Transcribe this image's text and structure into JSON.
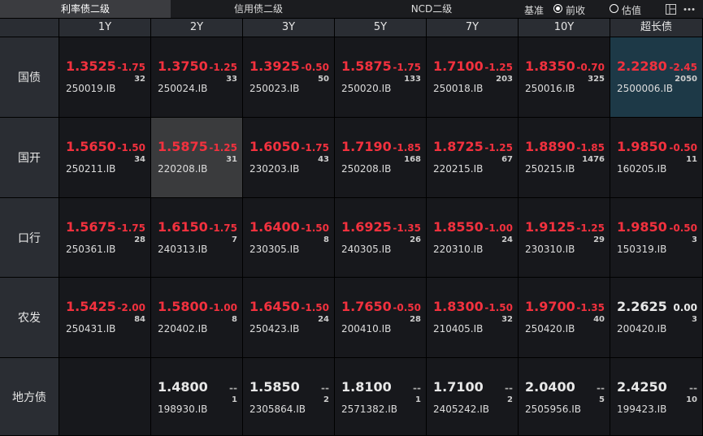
{
  "tabs": [
    "利率债二级",
    "信用债二级",
    "NCD二级"
  ],
  "basis": {
    "label": "基准",
    "options": [
      "前收",
      "估值"
    ]
  },
  "table": {
    "columns": [
      "1Y",
      "2Y",
      "3Y",
      "5Y",
      "7Y",
      "10Y",
      "超长债"
    ],
    "rows": [
      {
        "label": "国债",
        "cells": [
          {
            "price": "1.3525",
            "change": "-1.75",
            "count": "32",
            "code": "250019.IB"
          },
          {
            "price": "1.3750",
            "change": "-1.25",
            "count": "33",
            "code": "250024.IB"
          },
          {
            "price": "1.3925",
            "change": "-0.50",
            "count": "50",
            "code": "250023.IB"
          },
          {
            "price": "1.5875",
            "change": "-1.75",
            "count": "133",
            "code": "250020.IB"
          },
          {
            "price": "1.7100",
            "change": "-1.25",
            "count": "203",
            "code": "250018.IB"
          },
          {
            "price": "1.8350",
            "change": "-0.70",
            "count": "325",
            "code": "250016.IB"
          },
          {
            "price": "2.2280",
            "change": "-2.45",
            "count": "2050",
            "code": "2500006.IB"
          }
        ]
      },
      {
        "label": "国开",
        "cells": [
          {
            "price": "1.5650",
            "change": "-1.50",
            "count": "34",
            "code": "250211.IB"
          },
          {
            "price": "1.5875",
            "change": "-1.25",
            "count": "31",
            "code": "220208.IB"
          },
          {
            "price": "1.6050",
            "change": "-1.75",
            "count": "43",
            "code": "230203.IB"
          },
          {
            "price": "1.7190",
            "change": "-1.85",
            "count": "168",
            "code": "250208.IB"
          },
          {
            "price": "1.8725",
            "change": "-1.25",
            "count": "67",
            "code": "220215.IB"
          },
          {
            "price": "1.8890",
            "change": "-1.85",
            "count": "1476",
            "code": "250215.IB"
          },
          {
            "price": "1.9850",
            "change": "-0.50",
            "count": "11",
            "code": "160205.IB"
          }
        ]
      },
      {
        "label": "口行",
        "cells": [
          {
            "price": "1.5675",
            "change": "-1.75",
            "count": "28",
            "code": "250361.IB"
          },
          {
            "price": "1.6150",
            "change": "-1.75",
            "count": "7",
            "code": "240313.IB"
          },
          {
            "price": "1.6400",
            "change": "-1.50",
            "count": "8",
            "code": "230305.IB"
          },
          {
            "price": "1.6925",
            "change": "-1.35",
            "count": "26",
            "code": "240305.IB"
          },
          {
            "price": "1.8550",
            "change": "-1.00",
            "count": "24",
            "code": "220310.IB"
          },
          {
            "price": "1.9125",
            "change": "-1.25",
            "count": "29",
            "code": "230310.IB"
          },
          {
            "price": "1.9850",
            "change": "-0.50",
            "count": "3",
            "code": "150319.IB"
          }
        ]
      },
      {
        "label": "农发",
        "cells": [
          {
            "price": "1.5425",
            "change": "-2.00",
            "count": "84",
            "code": "250431.IB"
          },
          {
            "price": "1.5800",
            "change": "-1.00",
            "count": "8",
            "code": "220402.IB"
          },
          {
            "price": "1.6450",
            "change": "-1.50",
            "count": "24",
            "code": "250423.IB"
          },
          {
            "price": "1.7650",
            "change": "-0.50",
            "count": "28",
            "code": "200410.IB"
          },
          {
            "price": "1.8300",
            "change": "-1.50",
            "count": "32",
            "code": "210405.IB"
          },
          {
            "price": "1.9700",
            "change": "-1.35",
            "count": "40",
            "code": "250420.IB"
          },
          {
            "price": "2.2625",
            "change": "0.00",
            "count": "3",
            "code": "200420.IB"
          }
        ]
      },
      {
        "label": "地方债",
        "cells": [
          null,
          {
            "price": "1.4800",
            "change": "--",
            "count": "1",
            "code": "198930.IB"
          },
          {
            "price": "1.5850",
            "change": "--",
            "count": "2",
            "code": "2305864.IB"
          },
          {
            "price": "1.8100",
            "change": "--",
            "count": "1",
            "code": "2571382.IB"
          },
          {
            "price": "1.7100",
            "change": "--",
            "count": "2",
            "code": "2405242.IB"
          },
          {
            "price": "2.0400",
            "change": "--",
            "count": "5",
            "code": "2505956.IB"
          },
          {
            "price": "2.4250",
            "change": "--",
            "count": "10",
            "code": "199423.IB"
          }
        ]
      }
    ]
  }
}
